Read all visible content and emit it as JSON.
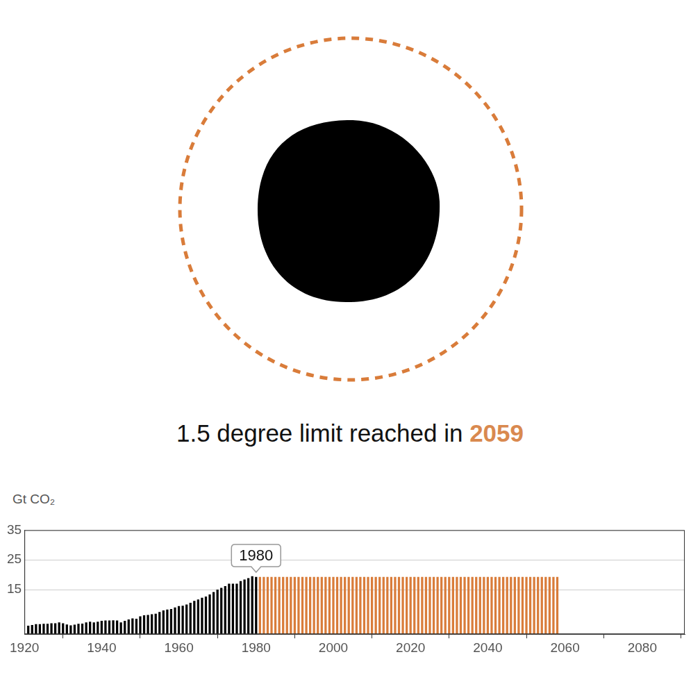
{
  "chart_data": {
    "type": "bar",
    "title": {
      "text": "1.5 degree limit reached in",
      "highlight": "2059"
    },
    "ylabel": "Gt CO₂",
    "x": [
      1921,
      1922,
      1923,
      1924,
      1925,
      1926,
      1927,
      1928,
      1929,
      1930,
      1931,
      1932,
      1933,
      1934,
      1935,
      1936,
      1937,
      1938,
      1939,
      1940,
      1941,
      1942,
      1943,
      1944,
      1945,
      1946,
      1947,
      1948,
      1949,
      1950,
      1951,
      1952,
      1953,
      1954,
      1955,
      1956,
      1957,
      1958,
      1959,
      1960,
      1961,
      1962,
      1963,
      1964,
      1965,
      1966,
      1967,
      1968,
      1969,
      1970,
      1971,
      1972,
      1973,
      1974,
      1975,
      1976,
      1977,
      1978,
      1979,
      1980,
      1981,
      1982,
      1983,
      1984,
      1985,
      1986,
      1987,
      1988,
      1989,
      1990,
      1991,
      1992,
      1993,
      1994,
      1995,
      1996,
      1997,
      1998,
      1999,
      2000,
      2001,
      2002,
      2003,
      2004,
      2005,
      2006,
      2007,
      2008,
      2009,
      2010,
      2011,
      2012,
      2013,
      2014,
      2015,
      2016,
      2017,
      2018,
      2019,
      2020,
      2021,
      2022,
      2023,
      2024,
      2025,
      2026,
      2027,
      2028,
      2029,
      2030,
      2031,
      2032,
      2033,
      2034,
      2035,
      2036,
      2037,
      2038,
      2039,
      2040,
      2041,
      2042,
      2043,
      2044,
      2045,
      2046,
      2047,
      2048,
      2049,
      2050,
      2051,
      2052,
      2053,
      2054,
      2055,
      2056,
      2057,
      2058
    ],
    "series": [
      {
        "color": "#000000",
        "values": [
          2.8,
          3.0,
          3.3,
          3.3,
          3.4,
          3.4,
          3.6,
          3.6,
          3.9,
          3.6,
          3.2,
          2.9,
          3.1,
          3.4,
          3.5,
          3.9,
          4.1,
          3.9,
          4.1,
          4.4,
          4.5,
          4.5,
          4.6,
          4.5,
          3.9,
          4.4,
          4.9,
          5.2,
          5.1,
          5.9,
          6.3,
          6.4,
          6.6,
          6.8,
          7.4,
          7.9,
          8.2,
          8.4,
          8.9,
          9.4,
          9.5,
          9.9,
          10.5,
          11.1,
          11.6,
          12.2,
          12.6,
          13.3,
          14.1,
          14.9,
          15.5,
          16.1,
          16.9,
          16.9,
          16.9,
          17.8,
          18.3,
          18.8,
          19.4,
          19.2,
          null,
          null,
          null,
          null,
          null,
          null,
          null,
          null,
          null,
          null,
          null,
          null,
          null,
          null,
          null,
          null,
          null,
          null,
          null,
          null,
          null,
          null,
          null,
          null,
          null,
          null,
          null,
          null,
          null,
          null,
          null,
          null,
          null,
          null,
          null,
          null,
          null,
          null,
          null,
          null,
          null,
          null,
          null,
          null,
          null,
          null,
          null,
          null,
          null,
          null,
          null,
          null,
          null,
          null,
          null,
          null,
          null,
          null,
          null,
          null,
          null,
          null,
          null,
          null,
          null,
          null,
          null,
          null,
          null,
          null,
          null,
          null,
          null,
          null,
          null,
          null,
          null,
          null
        ]
      },
      {
        "color": "#d97c3a",
        "values": [
          null,
          null,
          null,
          null,
          null,
          null,
          null,
          null,
          null,
          null,
          null,
          null,
          null,
          null,
          null,
          null,
          null,
          null,
          null,
          null,
          null,
          null,
          null,
          null,
          null,
          null,
          null,
          null,
          null,
          null,
          null,
          null,
          null,
          null,
          null,
          null,
          null,
          null,
          null,
          null,
          null,
          null,
          null,
          null,
          null,
          null,
          null,
          null,
          null,
          null,
          null,
          null,
          null,
          null,
          null,
          null,
          null,
          null,
          null,
          null,
          19.2,
          19.2,
          19.2,
          19.2,
          19.2,
          19.2,
          19.2,
          19.2,
          19.2,
          19.2,
          19.2,
          19.2,
          19.2,
          19.2,
          19.2,
          19.2,
          19.2,
          19.2,
          19.2,
          19.2,
          19.2,
          19.2,
          19.2,
          19.2,
          19.2,
          19.2,
          19.2,
          19.2,
          19.2,
          19.2,
          19.2,
          19.2,
          19.2,
          19.2,
          19.2,
          19.2,
          19.2,
          19.2,
          19.2,
          19.2,
          19.2,
          19.2,
          19.2,
          19.2,
          19.2,
          19.2,
          19.2,
          19.2,
          19.2,
          19.2,
          19.2,
          19.2,
          19.2,
          19.2,
          19.2,
          19.2,
          19.2,
          19.2,
          19.2,
          19.2,
          19.2,
          19.2,
          19.2,
          19.2,
          19.2,
          19.2,
          19.2,
          19.2,
          19.2,
          19.2,
          19.2,
          19.2,
          19.2,
          19.2,
          19.2,
          19.2,
          19.2,
          19.2
        ]
      }
    ],
    "annotations": [
      {
        "text": "1980",
        "x": 1980
      }
    ],
    "xlim": [
      1920,
      2091
    ],
    "xticks": [
      1920,
      1940,
      1960,
      1980,
      2000,
      2020,
      2040,
      2060,
      2080
    ],
    "ylim": [
      0,
      35
    ],
    "yticks": [
      15,
      25,
      35
    ],
    "grid": true
  }
}
